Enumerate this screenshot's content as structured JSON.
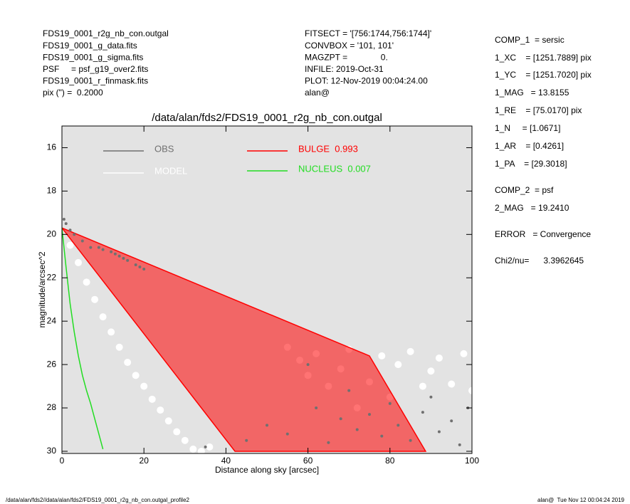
{
  "header_left": [
    "FDS19_0001_r2g_nb_con.outgal",
    "FDS19_0001_g_data.fits",
    "FDS19_0001_g_sigma.fits",
    "PSF     = psf_g19_over2.fits",
    "FDS19_0001_r_finmask.fits",
    "pix (\") =  0.2000"
  ],
  "header_middle": [
    "FITSECT = '[756:1744,756:1744]'",
    "CONVBOX = '101, 101'",
    "MAGZPT =              0.",
    "INFILE: 2019-Oct-31",
    "PLOT: 12-Nov-2019 00:04:24.00",
    "alan@"
  ],
  "fit_parameters": [
    "COMP_1  = sersic",
    "1_XC    = [1251.7889] pix",
    "1_YC    = [1251.7020] pix",
    "1_MAG   = 13.8155",
    "1_RE    = [75.0170] pix",
    "1_N     = [1.0671]",
    "1_AR    = [0.4261]",
    "1_PA    = [29.3018]",
    "COMP_2  = psf",
    "2_MAG   = 19.2410",
    "ERROR   = Convergence",
    "Chi2/nu=      3.3962645"
  ],
  "footer": {
    "left": "/data/alan/fds2//data/alan/fds2/FDS19_0001_r2g_nb_con.outgal_profile2",
    "right": "alan@  Tue Nov 12 00:04:24 2019"
  },
  "chart_data": {
    "type": "scatter",
    "title": "/data/alan/fds2/FDS19_0001_r2g_nb_con.outgal",
    "x_label": "Distance along sky [arcsec]",
    "y_label": "magnitude/arcsec^2",
    "xlim": [
      0,
      100
    ],
    "ylim": [
      30.1,
      15
    ],
    "xticks": [
      0,
      20,
      40,
      60,
      80,
      100
    ],
    "yticks": [
      16,
      18,
      20,
      22,
      24,
      26,
      28,
      30
    ],
    "background": "#e3e3e3",
    "series": [
      {
        "name": "MODEL",
        "color": "#ffffff",
        "style": "points",
        "x": [
          2,
          4,
          6,
          8,
          10,
          12,
          14,
          16,
          18,
          20,
          22,
          24,
          26,
          28,
          30,
          32,
          34,
          36,
          55,
          58,
          60,
          62,
          65,
          68,
          70,
          72,
          75,
          78,
          80,
          82,
          85,
          88,
          90,
          92,
          95,
          98,
          100
        ],
        "values": [
          20.5,
          21.3,
          22.2,
          23.0,
          23.8,
          24.5,
          25.2,
          25.9,
          26.5,
          27.0,
          27.6,
          28.1,
          28.6,
          29.1,
          29.5,
          29.9,
          30.0,
          29.8,
          25.2,
          25.8,
          26.5,
          25.5,
          27.0,
          26.2,
          25.3,
          28.0,
          26.8,
          25.6,
          27.5,
          26.0,
          25.4,
          27.0,
          26.3,
          25.7,
          26.9,
          25.5,
          27.2
        ]
      },
      {
        "name": "BULGE  0.993",
        "color": "#ff0000",
        "style": "area",
        "x": [
          0,
          75,
          88.7,
          42.2
        ],
        "values": [
          19.7,
          25.6,
          30,
          30
        ]
      },
      {
        "name": "OBS",
        "color": "#707070",
        "style": "points",
        "x": [
          0.5,
          1,
          2,
          3,
          5,
          7,
          9,
          10,
          12,
          13,
          14,
          15,
          16,
          18,
          19,
          20,
          35,
          55,
          62,
          65,
          68,
          70,
          72,
          75,
          78,
          80,
          82,
          85,
          88,
          90,
          92,
          95,
          97,
          99,
          60,
          45,
          50
        ],
        "values": [
          19.3,
          19.5,
          19.8,
          20.0,
          20.3,
          20.6,
          20.6,
          20.7,
          20.8,
          20.9,
          21.0,
          21.1,
          21.2,
          21.4,
          21.5,
          21.6,
          29.8,
          29.2,
          28.0,
          29.6,
          28.5,
          27.2,
          29.0,
          28.3,
          29.3,
          27.8,
          28.8,
          29.5,
          28.2,
          27.5,
          29.1,
          28.6,
          29.7,
          28.0,
          26.0,
          29.5,
          28.8
        ]
      },
      {
        "name": "NUCLEUS  0.007",
        "color": "#22dd22",
        "style": "line",
        "x": [
          0,
          0.5,
          1,
          2,
          3,
          4,
          5,
          6,
          7,
          8,
          9,
          10
        ],
        "values": [
          19.7,
          20.6,
          21.5,
          23.2,
          24.5,
          25.6,
          26.5,
          27.2,
          27.8,
          28.5,
          29.2,
          29.9
        ]
      }
    ]
  }
}
